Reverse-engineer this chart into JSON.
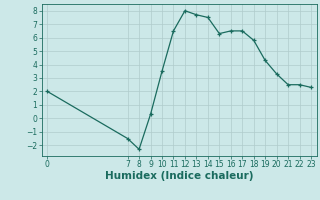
{
  "x": [
    0,
    7,
    8,
    9,
    10,
    11,
    12,
    13,
    14,
    15,
    16,
    17,
    18,
    19,
    20,
    21,
    22,
    23
  ],
  "y": [
    2.0,
    -1.5,
    -2.3,
    0.3,
    3.5,
    6.5,
    8.0,
    7.7,
    7.5,
    6.3,
    6.5,
    6.5,
    5.8,
    4.3,
    3.3,
    2.5,
    2.5,
    2.3
  ],
  "xlabel": "Humidex (Indice chaleur)",
  "bg_color": "#cce8e8",
  "line_color": "#1a6b5e",
  "marker_color": "#1a6b5e",
  "grid_color": "#b0cccc",
  "xlim": [
    -0.5,
    23.5
  ],
  "ylim": [
    -2.8,
    8.5
  ],
  "yticks": [
    -2,
    -1,
    0,
    1,
    2,
    3,
    4,
    5,
    6,
    7,
    8
  ],
  "xticks": [
    0,
    7,
    8,
    9,
    10,
    11,
    12,
    13,
    14,
    15,
    16,
    17,
    18,
    19,
    20,
    21,
    22,
    23
  ],
  "tick_label_color": "#1a6b5e",
  "xlabel_fontsize": 7.5,
  "tick_fontsize": 5.5
}
